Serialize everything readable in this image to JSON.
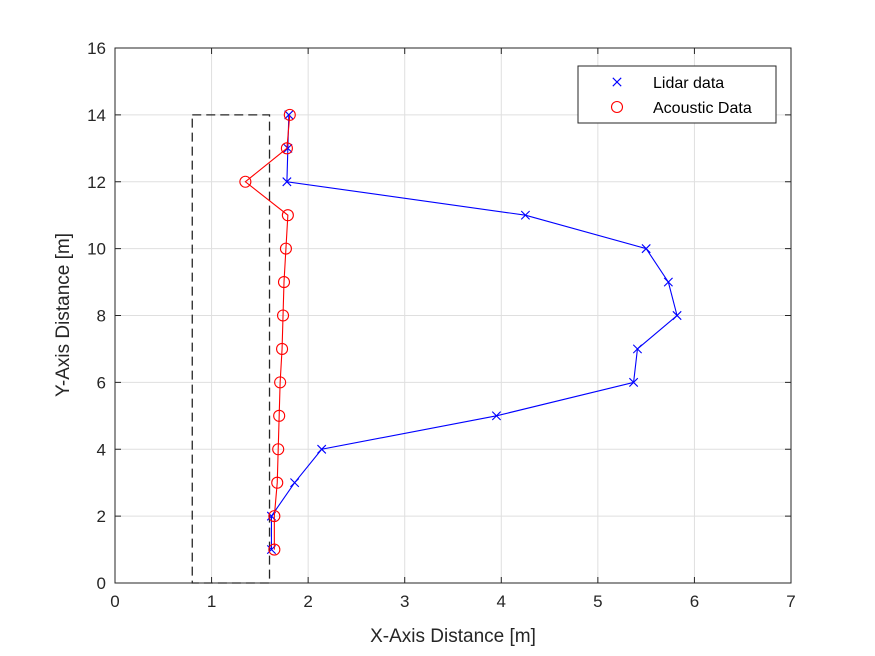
{
  "chart_data": {
    "type": "line",
    "xlabel": "X-Axis Distance [m]",
    "ylabel": "Y-Axis Distance [m]",
    "xlim": [
      0,
      7
    ],
    "ylim": [
      0,
      16
    ],
    "xticks": [
      0,
      1,
      2,
      3,
      4,
      5,
      6,
      7
    ],
    "yticks": [
      0,
      2,
      4,
      6,
      8,
      10,
      12,
      14,
      16
    ],
    "grid": true,
    "legend_position": "top-right",
    "series": [
      {
        "name": "Lidar data",
        "color": "#0000ff",
        "marker": "x",
        "points": [
          [
            1.62,
            1
          ],
          [
            1.62,
            2
          ],
          [
            1.86,
            3
          ],
          [
            2.14,
            4
          ],
          [
            3.95,
            5
          ],
          [
            5.37,
            6
          ],
          [
            5.41,
            7
          ],
          [
            5.82,
            8
          ],
          [
            5.73,
            9
          ],
          [
            5.5,
            10
          ],
          [
            4.25,
            11
          ],
          [
            1.78,
            12
          ],
          [
            1.79,
            13
          ],
          [
            1.8,
            14
          ]
        ]
      },
      {
        "name": "Acoustic Data",
        "color": "#ff0000",
        "marker": "circle",
        "points": [
          [
            1.65,
            1
          ],
          [
            1.65,
            2
          ],
          [
            1.68,
            3
          ],
          [
            1.69,
            4
          ],
          [
            1.7,
            5
          ],
          [
            1.71,
            6
          ],
          [
            1.73,
            7
          ],
          [
            1.74,
            8
          ],
          [
            1.75,
            9
          ],
          [
            1.77,
            10
          ],
          [
            1.79,
            11
          ],
          [
            1.35,
            12
          ],
          [
            1.78,
            13
          ],
          [
            1.81,
            14
          ]
        ]
      }
    ],
    "annotations": [
      {
        "type": "dashed-rectangle",
        "color": "#262626",
        "x": [
          0.8,
          1.6
        ],
        "y": [
          0,
          14
        ]
      }
    ]
  }
}
